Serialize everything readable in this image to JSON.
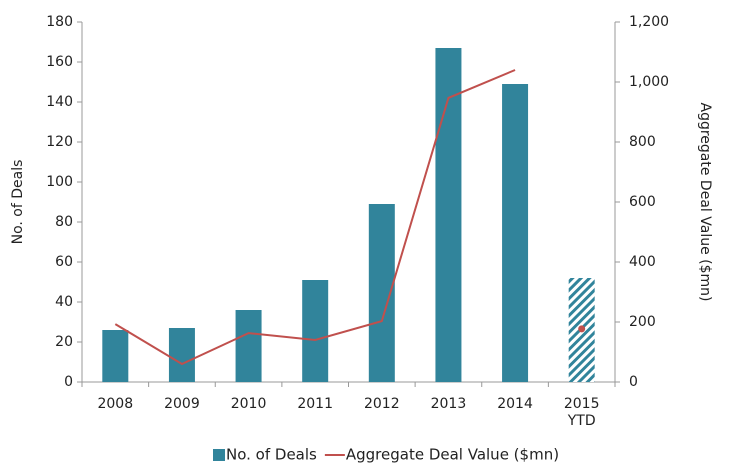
{
  "chart_data": {
    "type": "bar-line",
    "categories": [
      "2008",
      "2009",
      "2010",
      "2011",
      "2012",
      "2013",
      "2014",
      "2015 YTD"
    ],
    "series": [
      {
        "name": "No. of Deals",
        "color": "#31849b",
        "type": "bar",
        "values": [
          26,
          27,
          36,
          51,
          89,
          167,
          149,
          52
        ]
      },
      {
        "name": "Aggregate Deal Value ($mn)",
        "color": "#c0504d",
        "type": "line",
        "axis": "y2",
        "values": [
          193,
          60,
          163,
          140,
          203,
          947,
          1040,
          177
        ]
      }
    ],
    "partial_last": true,
    "ylabel": "No. of Deals",
    "y2label": "Aggregate Deal Value ($mn)",
    "ylim": [
      0,
      180
    ],
    "yticks": [
      0,
      20,
      40,
      60,
      80,
      100,
      120,
      140,
      160,
      180
    ],
    "y2lim": [
      0,
      1200
    ],
    "y2ticks": [
      0,
      200,
      400,
      600,
      800,
      {
        "value": 1000,
        "label": "1,000"
      },
      {
        "value": 1200,
        "label": "1,200"
      }
    ],
    "legend": "bottom",
    "grid": false
  }
}
